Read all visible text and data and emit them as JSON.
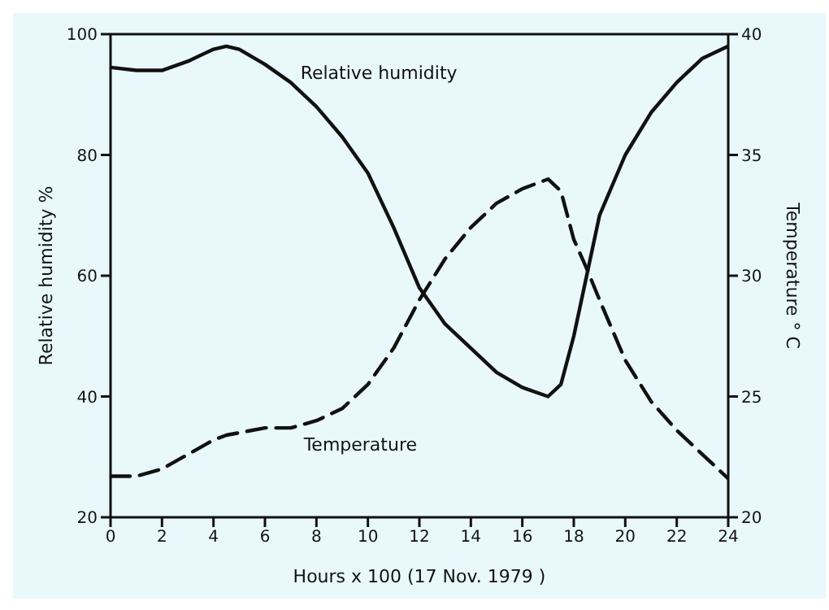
{
  "chart_data": {
    "type": "line",
    "xlabel": "Hours x 100 (17 Nov. 1979 )",
    "ylabel": "Relative humidity %",
    "y2label": "Temperature ° C",
    "x": [
      0,
      1,
      2,
      3,
      4,
      4.5,
      5,
      6,
      7,
      8,
      9,
      10,
      11,
      12,
      13,
      14,
      15,
      16,
      17,
      17.5,
      18,
      18.5,
      19,
      20,
      21,
      22,
      23,
      24
    ],
    "series": [
      {
        "name": "Relative humidity",
        "color": "#111111",
        "line_style": "solid",
        "values": [
          94.5,
          94,
          94,
          95.5,
          97.5,
          98,
          97.5,
          95,
          92,
          88,
          83,
          77,
          68,
          58,
          52,
          48,
          44,
          41.5,
          40,
          42,
          50,
          60,
          70,
          80,
          87,
          92,
          96,
          98
        ]
      },
      {
        "name": "Temperature",
        "color": "#111111",
        "line_style": "dashed",
        "axis": "y2",
        "values": [
          21.7,
          21.7,
          22,
          22.6,
          23.2,
          23.4,
          23.5,
          23.7,
          23.7,
          24,
          24.5,
          25.5,
          27,
          29,
          30.7,
          32,
          33,
          33.6,
          34,
          33.5,
          31.5,
          30.3,
          29,
          26.5,
          24.8,
          23.6,
          22.6,
          21.6
        ]
      }
    ],
    "xlim": [
      0,
      24
    ],
    "xticks": [
      0,
      2,
      4,
      6,
      8,
      10,
      12,
      14,
      16,
      18,
      20,
      22,
      24
    ],
    "ylim": [
      20,
      100
    ],
    "yticks": [
      20,
      40,
      60,
      80,
      100
    ],
    "y2lim": [
      20,
      40
    ],
    "y2ticks": [
      20,
      25,
      30,
      35,
      40
    ],
    "grid": false,
    "legend": false,
    "marker": "none"
  }
}
